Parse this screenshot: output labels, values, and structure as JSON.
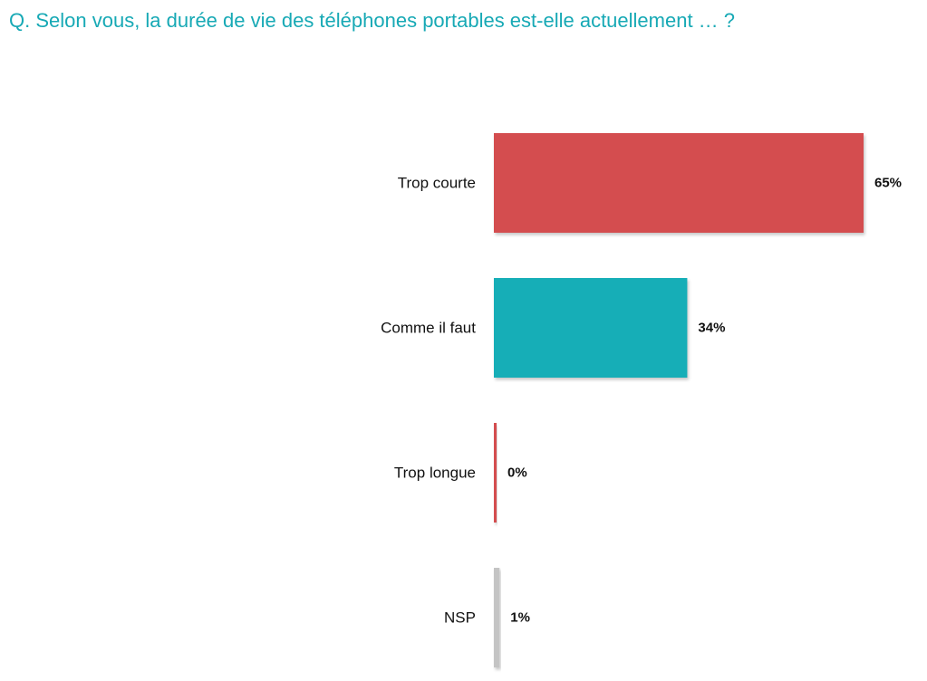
{
  "question": "Q. Selon vous, la durée de vie des téléphones portables est-elle actuellement … ?",
  "chart_data": {
    "type": "bar",
    "orientation": "horizontal",
    "title": "",
    "categories": [
      "Trop courte",
      "Comme il faut",
      "Trop longue",
      "NSP"
    ],
    "values": [
      65,
      34,
      0,
      1
    ],
    "value_labels": [
      "65%",
      "34%",
      "0%",
      "1%"
    ],
    "unit": "%",
    "xlim": [
      0,
      65
    ],
    "grid": false,
    "legend": "none",
    "colors": [
      "#d44d4f",
      "#17aeb7",
      "#d44d4f",
      "#c4c4c4"
    ]
  }
}
